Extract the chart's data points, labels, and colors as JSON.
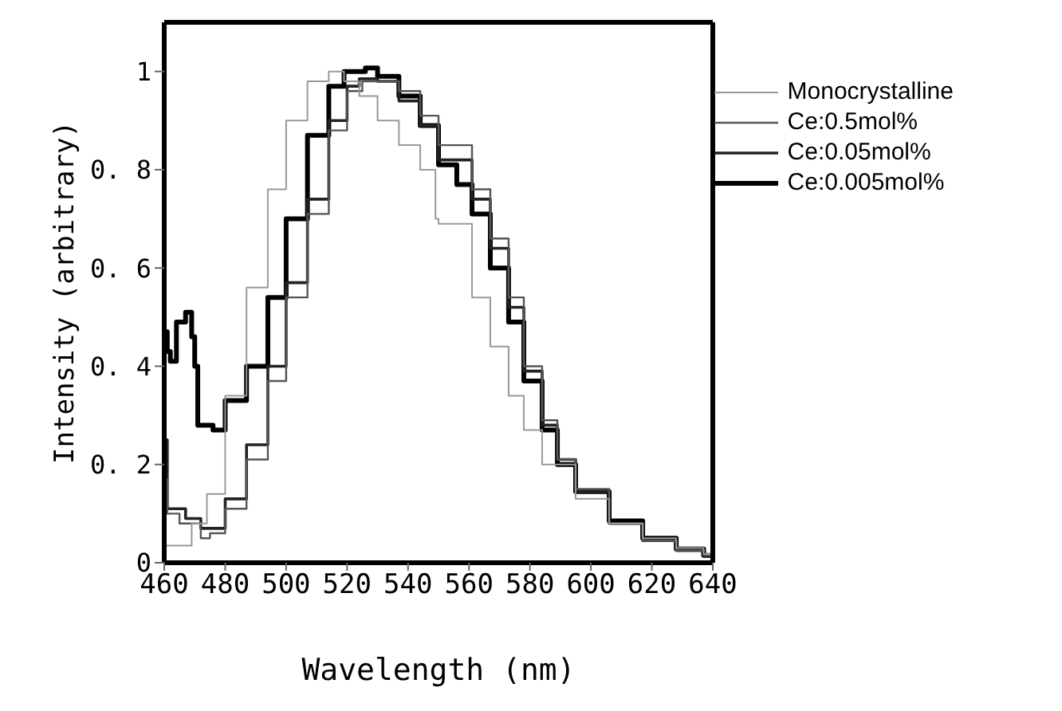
{
  "chart_data": {
    "type": "step",
    "xlabel": "Wavelength (nm)",
    "ylabel": "Intensity (arbitrary)",
    "xlim": [
      460,
      640
    ],
    "xticks": [
      460,
      480,
      500,
      520,
      540,
      560,
      580,
      600,
      620,
      640
    ],
    "ylim": [
      0,
      1.1
    ],
    "yticks": [
      0,
      {
        "value": 0.2,
        "label": "0. 2"
      },
      {
        "value": 0.4,
        "label": "0. 4"
      },
      {
        "value": 0.6,
        "label": "0. 6"
      },
      {
        "value": 0.8,
        "label": "0. 8"
      },
      1
    ],
    "legend": "top right",
    "grid": false,
    "marker": "none",
    "line_style": "solid",
    "series": [
      {
        "name": "Monocrystalline",
        "color": "#999999",
        "x": [
          460,
          469,
          474,
          480,
          487,
          494,
          500,
          507,
          514,
          519,
          524,
          530,
          537,
          544,
          549,
          550,
          561,
          567,
          573,
          578,
          584,
          595,
          606,
          617,
          628,
          637,
          640
        ],
        "values": [
          0.035,
          0.08,
          0.14,
          0.34,
          0.56,
          0.76,
          0.9,
          0.98,
          1.0,
          0.98,
          0.95,
          0.9,
          0.85,
          0.8,
          0.7,
          0.69,
          0.54,
          0.44,
          0.34,
          0.27,
          0.2,
          0.13,
          0.08,
          0.05,
          0.03,
          0.018,
          0.015
        ]
      },
      {
        "name": "Ce:0.5mol%",
        "color": "#555555",
        "x": [
          460,
          461,
          465,
          472,
          475,
          480,
          487,
          494,
          500,
          507,
          514,
          520,
          525,
          530,
          537,
          544,
          550,
          561,
          567,
          573,
          578,
          584,
          589,
          595,
          606,
          617,
          628,
          637,
          640
        ],
        "values": [
          0.17,
          0.1,
          0.08,
          0.05,
          0.06,
          0.11,
          0.21,
          0.37,
          0.54,
          0.71,
          0.88,
          0.96,
          0.98,
          0.98,
          0.96,
          0.91,
          0.85,
          0.76,
          0.66,
          0.54,
          0.4,
          0.29,
          0.21,
          0.15,
          0.08,
          0.045,
          0.025,
          0.015,
          0.013
        ]
      },
      {
        "name": "Ce:0.05mol%",
        "color": "#222222",
        "x": [
          460,
          461,
          467,
          472,
          475,
          480,
          487,
          494,
          500,
          507,
          514,
          520,
          524,
          530,
          537,
          544,
          550,
          561,
          567,
          573,
          578,
          584,
          589,
          595,
          606,
          617,
          628,
          637,
          640
        ],
        "values": [
          0.25,
          0.11,
          0.09,
          0.07,
          0.07,
          0.13,
          0.24,
          0.4,
          0.57,
          0.74,
          0.9,
          0.97,
          0.985,
          0.98,
          0.94,
          0.89,
          0.82,
          0.74,
          0.64,
          0.52,
          0.39,
          0.28,
          0.21,
          0.145,
          0.08,
          0.045,
          0.025,
          0.015,
          0.013
        ]
      },
      {
        "name": "Ce:0.005mol%",
        "color": "#000000",
        "x": [
          460,
          461,
          462,
          464,
          467,
          469,
          470,
          471,
          476,
          480,
          487,
          494,
          500,
          507,
          514,
          519,
          526,
          530,
          537,
          544,
          550,
          556,
          561,
          567,
          573,
          578,
          584,
          589,
          595,
          606,
          617,
          628,
          637,
          640
        ],
        "values": [
          0.47,
          0.43,
          0.41,
          0.49,
          0.51,
          0.46,
          0.4,
          0.28,
          0.27,
          0.33,
          0.4,
          0.54,
          0.7,
          0.87,
          0.97,
          1.0,
          1.007,
          0.99,
          0.95,
          0.89,
          0.81,
          0.77,
          0.71,
          0.6,
          0.49,
          0.37,
          0.27,
          0.2,
          0.145,
          0.085,
          0.05,
          0.028,
          0.015,
          0.013
        ]
      }
    ]
  }
}
